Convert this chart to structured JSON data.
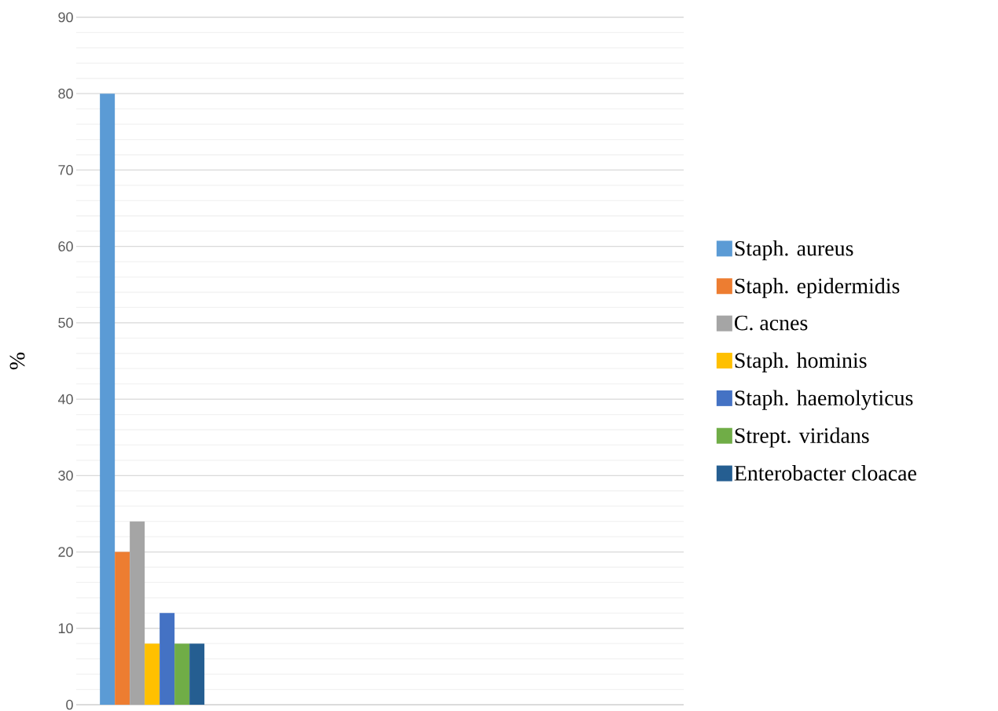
{
  "chart_data": {
    "type": "bar",
    "ylabel": "%",
    "categories": [
      null,
      null,
      null,
      null
    ],
    "series": [
      {
        "name": "Staph. aureus",
        "color": "#5b9bd5",
        "values": [
          80,
          null,
          null,
          null
        ]
      },
      {
        "name": "Staph. epidermidis",
        "color": "#ed7d31",
        "values": [
          20,
          null,
          null,
          null
        ]
      },
      {
        "name": "C. acnes",
        "color": "#a5a5a5",
        "values": [
          24,
          null,
          null,
          null
        ]
      },
      {
        "name": "Staph. hominis",
        "color": "#ffc000",
        "values": [
          8,
          null,
          null,
          null
        ]
      },
      {
        "name": "Staph. haemolyticus",
        "color": "#4472c4",
        "values": [
          12,
          null,
          null,
          null
        ]
      },
      {
        "name": "Strept. viridans",
        "color": "#70ad47",
        "values": [
          8,
          null,
          null,
          null
        ]
      },
      {
        "name": "Enterobacter cloacae",
        "color": "#255e91",
        "values": [
          8,
          null,
          null,
          null
        ]
      }
    ],
    "ylim": [
      0,
      90
    ],
    "yticks": [
      0,
      10,
      20,
      30,
      40,
      50,
      60,
      70,
      80,
      90
    ],
    "grid": "y",
    "legend": "right"
  }
}
